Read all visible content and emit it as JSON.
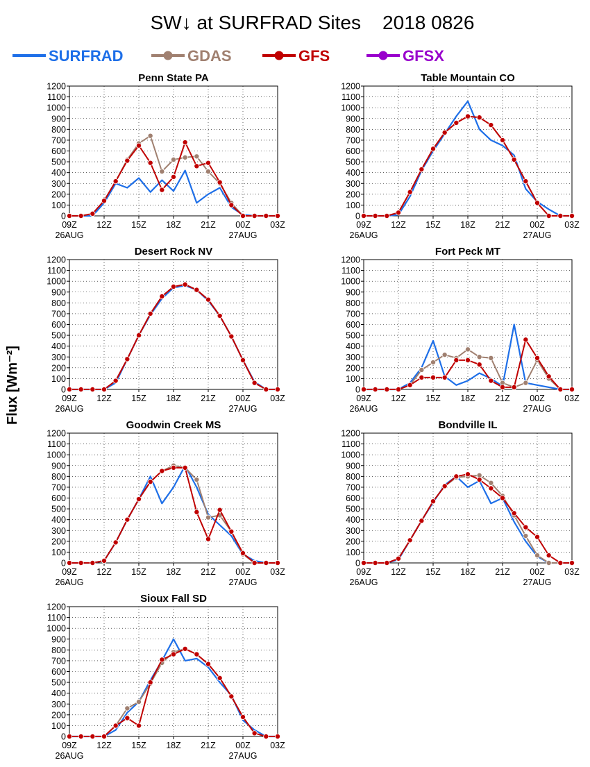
{
  "title": "SW↓ at SURFRAD Sites    2018 0826",
  "ylabel": "Flux [Wm⁻²]",
  "colors": {
    "SURFRAD": "#1e6fe8",
    "GDAS": "#a08070",
    "GFS": "#c00000",
    "GFSX": "#9900cc"
  },
  "legend": [
    {
      "name": "SURFRAD",
      "color": "#1e6fe8",
      "marker": false
    },
    {
      "name": "GDAS",
      "color": "#a08070",
      "marker": true
    },
    {
      "name": "GFS",
      "color": "#c00000",
      "marker": true
    },
    {
      "name": "GFSX",
      "color": "#9900cc",
      "marker": true
    }
  ],
  "chart_data": [
    {
      "type": "line",
      "title": "Penn State PA",
      "x": [
        "09Z",
        "10Z",
        "11Z",
        "12Z",
        "13Z",
        "14Z",
        "15Z",
        "16Z",
        "17Z",
        "18Z",
        "19Z",
        "20Z",
        "21Z",
        "22Z",
        "23Z",
        "00Z",
        "01Z",
        "02Z",
        "03Z"
      ],
      "x_tick_labels": [
        "09Z",
        "12Z",
        "15Z",
        "18Z",
        "21Z",
        "00Z",
        "03Z"
      ],
      "x_date_labels": [
        "26AUG",
        "27AUG"
      ],
      "ylim": [
        0,
        1200
      ],
      "y_ticks": [
        0,
        100,
        200,
        300,
        400,
        500,
        600,
        700,
        800,
        900,
        1000,
        1100,
        1200
      ],
      "grid": true,
      "series": [
        {
          "name": "SURFRAD",
          "values": [
            0,
            0,
            0,
            120,
            300,
            260,
            350,
            220,
            330,
            230,
            420,
            120,
            200,
            260,
            80,
            10,
            0,
            0,
            0
          ]
        },
        {
          "name": "GDAS",
          "values": [
            0,
            0,
            20,
            140,
            320,
            520,
            670,
            740,
            410,
            520,
            540,
            550,
            410,
            300,
            120,
            0,
            0,
            0,
            0
          ]
        },
        {
          "name": "GFS",
          "values": [
            0,
            0,
            20,
            140,
            320,
            510,
            650,
            490,
            240,
            360,
            680,
            460,
            490,
            310,
            100,
            0,
            0,
            0,
            0
          ]
        }
      ]
    },
    {
      "type": "line",
      "title": "Table Mountain CO",
      "x": [
        "09Z",
        "10Z",
        "11Z",
        "12Z",
        "13Z",
        "14Z",
        "15Z",
        "16Z",
        "17Z",
        "18Z",
        "19Z",
        "20Z",
        "21Z",
        "22Z",
        "23Z",
        "00Z",
        "01Z",
        "02Z",
        "03Z"
      ],
      "x_tick_labels": [
        "09Z",
        "12Z",
        "15Z",
        "18Z",
        "21Z",
        "00Z",
        "03Z"
      ],
      "x_date_labels": [
        "26AUG",
        "27AUG"
      ],
      "ylim": [
        0,
        1200
      ],
      "y_ticks": [
        0,
        100,
        200,
        300,
        400,
        500,
        600,
        700,
        800,
        900,
        1000,
        1100,
        1200
      ],
      "grid": true,
      "series": [
        {
          "name": "SURFRAD",
          "values": [
            0,
            0,
            0,
            10,
            180,
            420,
            600,
            760,
            920,
            1060,
            800,
            700,
            650,
            560,
            250,
            130,
            60,
            0,
            0
          ]
        },
        {
          "name": "GDAS",
          "values": [
            0,
            0,
            0,
            30,
            220,
            430,
            620,
            770,
            860,
            920,
            910,
            840,
            700,
            520,
            320,
            120,
            0,
            0,
            0
          ]
        },
        {
          "name": "GFS",
          "values": [
            0,
            0,
            0,
            30,
            220,
            430,
            620,
            770,
            860,
            920,
            910,
            840,
            700,
            520,
            320,
            120,
            0,
            0,
            0
          ]
        }
      ]
    },
    {
      "type": "line",
      "title": "Desert Rock NV",
      "x": [
        "09Z",
        "10Z",
        "11Z",
        "12Z",
        "13Z",
        "14Z",
        "15Z",
        "16Z",
        "17Z",
        "18Z",
        "19Z",
        "20Z",
        "21Z",
        "22Z",
        "23Z",
        "00Z",
        "01Z",
        "02Z",
        "03Z"
      ],
      "x_tick_labels": [
        "09Z",
        "12Z",
        "15Z",
        "18Z",
        "21Z",
        "00Z",
        "03Z"
      ],
      "x_date_labels": [
        "26AUG",
        "27AUG"
      ],
      "ylim": [
        0,
        1200
      ],
      "y_ticks": [
        0,
        100,
        200,
        300,
        400,
        500,
        600,
        700,
        800,
        900,
        1000,
        1100,
        1200
      ],
      "grid": true,
      "series": [
        {
          "name": "SURFRAD",
          "values": [
            0,
            0,
            0,
            0,
            60,
            280,
            500,
            690,
            840,
            940,
            960,
            920,
            820,
            680,
            490,
            270,
            70,
            0,
            0
          ]
        },
        {
          "name": "GDAS",
          "values": [
            0,
            0,
            0,
            0,
            80,
            280,
            500,
            700,
            860,
            950,
            970,
            920,
            830,
            680,
            490,
            270,
            60,
            0,
            0
          ]
        },
        {
          "name": "GFS",
          "values": [
            0,
            0,
            0,
            0,
            80,
            280,
            500,
            700,
            860,
            950,
            970,
            920,
            830,
            680,
            490,
            270,
            60,
            0,
            0
          ]
        }
      ]
    },
    {
      "type": "line",
      "title": "Fort Peck MT",
      "x": [
        "09Z",
        "10Z",
        "11Z",
        "12Z",
        "13Z",
        "14Z",
        "15Z",
        "16Z",
        "17Z",
        "18Z",
        "19Z",
        "20Z",
        "21Z",
        "22Z",
        "23Z",
        "00Z",
        "01Z",
        "02Z",
        "03Z"
      ],
      "x_tick_labels": [
        "09Z",
        "12Z",
        "15Z",
        "18Z",
        "21Z",
        "00Z",
        "03Z"
      ],
      "x_date_labels": [
        "26AUG",
        "27AUG"
      ],
      "ylim": [
        0,
        1200
      ],
      "y_ticks": [
        0,
        100,
        200,
        300,
        400,
        500,
        600,
        700,
        800,
        900,
        1000,
        1100,
        1200
      ],
      "grid": true,
      "series": [
        {
          "name": "SURFRAD",
          "values": [
            0,
            0,
            0,
            0,
            60,
            200,
            450,
            120,
            40,
            80,
            150,
            100,
            30,
            600,
            60,
            40,
            20,
            0,
            0
          ]
        },
        {
          "name": "GDAS",
          "values": [
            0,
            0,
            0,
            0,
            40,
            180,
            250,
            320,
            290,
            370,
            300,
            290,
            60,
            20,
            60,
            270,
            100,
            0,
            0
          ]
        },
        {
          "name": "GFS",
          "values": [
            0,
            0,
            0,
            0,
            40,
            110,
            110,
            110,
            270,
            270,
            230,
            80,
            20,
            20,
            460,
            290,
            120,
            0,
            0
          ]
        }
      ]
    },
    {
      "type": "line",
      "title": "Goodwin Creek MS",
      "x": [
        "09Z",
        "10Z",
        "11Z",
        "12Z",
        "13Z",
        "14Z",
        "15Z",
        "16Z",
        "17Z",
        "18Z",
        "19Z",
        "20Z",
        "21Z",
        "22Z",
        "23Z",
        "00Z",
        "01Z",
        "02Z",
        "03Z"
      ],
      "x_tick_labels": [
        "09Z",
        "12Z",
        "15Z",
        "18Z",
        "21Z",
        "00Z",
        "03Z"
      ],
      "x_date_labels": [
        "26AUG",
        "27AUG"
      ],
      "ylim": [
        0,
        1200
      ],
      "y_ticks": [
        0,
        100,
        200,
        300,
        400,
        500,
        600,
        700,
        800,
        900,
        1000,
        1100,
        1200
      ],
      "grid": true,
      "series": [
        {
          "name": "SURFRAD",
          "values": [
            0,
            0,
            0,
            20,
            190,
            400,
            590,
            800,
            550,
            700,
            900,
            700,
            450,
            350,
            250,
            80,
            20,
            0,
            0
          ]
        },
        {
          "name": "GDAS",
          "values": [
            0,
            0,
            0,
            20,
            190,
            400,
            590,
            750,
            850,
            900,
            880,
            770,
            420,
            440,
            290,
            80,
            0,
            0,
            0
          ]
        },
        {
          "name": "GFS",
          "values": [
            0,
            0,
            0,
            20,
            190,
            400,
            590,
            750,
            850,
            880,
            880,
            470,
            220,
            490,
            290,
            90,
            0,
            0,
            0
          ]
        }
      ]
    },
    {
      "type": "line",
      "title": "Bondville IL",
      "x": [
        "09Z",
        "10Z",
        "11Z",
        "12Z",
        "13Z",
        "14Z",
        "15Z",
        "16Z",
        "17Z",
        "18Z",
        "19Z",
        "20Z",
        "21Z",
        "22Z",
        "23Z",
        "00Z",
        "01Z",
        "02Z",
        "03Z"
      ],
      "x_tick_labels": [
        "09Z",
        "12Z",
        "15Z",
        "18Z",
        "21Z",
        "00Z",
        "03Z"
      ],
      "x_date_labels": [
        "26AUG",
        "27AUG"
      ],
      "ylim": [
        0,
        1200
      ],
      "y_ticks": [
        0,
        100,
        200,
        300,
        400,
        500,
        600,
        700,
        800,
        900,
        1000,
        1100,
        1200
      ],
      "grid": true,
      "series": [
        {
          "name": "SURFRAD",
          "values": [
            0,
            0,
            0,
            30,
            210,
            390,
            560,
            720,
            800,
            700,
            760,
            550,
            600,
            380,
            200,
            60,
            0,
            0,
            0
          ]
        },
        {
          "name": "GDAS",
          "values": [
            0,
            0,
            0,
            40,
            210,
            390,
            570,
            710,
            790,
            800,
            810,
            740,
            620,
            440,
            250,
            70,
            0,
            0,
            0
          ]
        },
        {
          "name": "GFS",
          "values": [
            0,
            0,
            0,
            40,
            210,
            390,
            570,
            710,
            800,
            820,
            770,
            690,
            600,
            460,
            330,
            240,
            70,
            0,
            0
          ]
        }
      ]
    },
    {
      "type": "line",
      "title": "Sioux Fall SD",
      "x": [
        "09Z",
        "10Z",
        "11Z",
        "12Z",
        "13Z",
        "14Z",
        "15Z",
        "16Z",
        "17Z",
        "18Z",
        "19Z",
        "20Z",
        "21Z",
        "22Z",
        "23Z",
        "00Z",
        "01Z",
        "02Z",
        "03Z"
      ],
      "x_tick_labels": [
        "09Z",
        "12Z",
        "15Z",
        "18Z",
        "21Z",
        "00Z",
        "03Z"
      ],
      "x_date_labels": [
        "26AUG",
        "27AUG"
      ],
      "ylim": [
        0,
        1200
      ],
      "y_ticks": [
        0,
        100,
        200,
        300,
        400,
        500,
        600,
        700,
        800,
        900,
        1000,
        1100,
        1200
      ],
      "grid": true,
      "series": [
        {
          "name": "SURFRAD",
          "values": [
            0,
            0,
            0,
            0,
            60,
            220,
            320,
            520,
            700,
            900,
            700,
            720,
            640,
            500,
            380,
            150,
            60,
            0,
            0
          ]
        },
        {
          "name": "GDAS",
          "values": [
            0,
            0,
            0,
            0,
            100,
            260,
            320,
            490,
            680,
            780,
            810,
            760,
            670,
            540,
            370,
            180,
            30,
            0,
            0
          ]
        },
        {
          "name": "GFS",
          "values": [
            0,
            0,
            0,
            0,
            100,
            170,
            100,
            500,
            710,
            760,
            810,
            760,
            670,
            540,
            370,
            180,
            30,
            0,
            0
          ]
        }
      ]
    }
  ]
}
